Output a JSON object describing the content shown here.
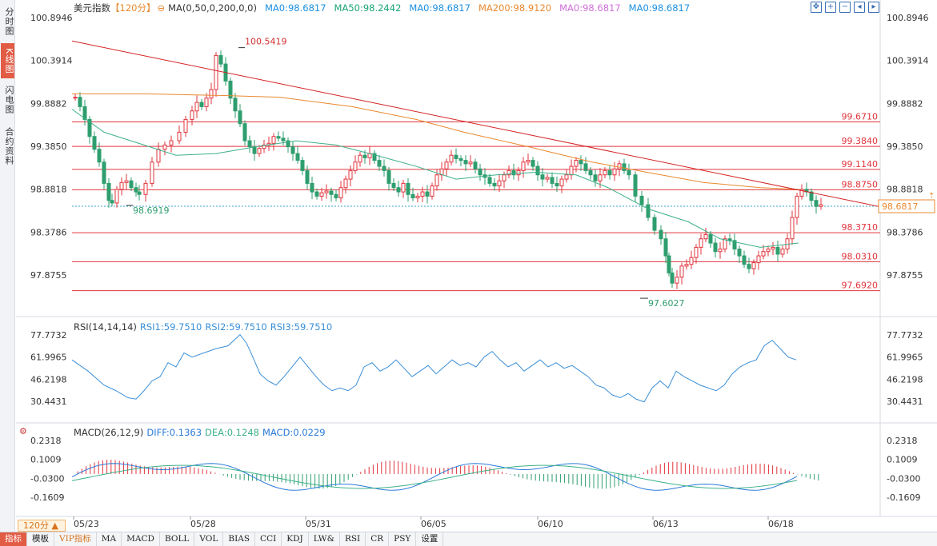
{
  "left_tabs": [
    {
      "label": "分时图",
      "active": false
    },
    {
      "label": "K线图",
      "active": true
    },
    {
      "label": "闪电图",
      "active": false
    },
    {
      "label": "合约资料",
      "active": false
    }
  ],
  "header": {
    "name": "美元指数",
    "period_tag": "【120分】",
    "ma_title": "MA(0,50,0,200,0,0)",
    "ma_values": [
      {
        "label": "MA0:98.6817",
        "color": "#1e90e0"
      },
      {
        "label": "MA50:98.2442",
        "color": "#1aa37a"
      },
      {
        "label": "MA0:98.6817",
        "color": "#1e90e0"
      },
      {
        "label": "MA200:98.9120",
        "color": "#e8892f"
      },
      {
        "label": "MA0:98.6817",
        "color": "#d070d8"
      },
      {
        "label": "MA0:98.6817",
        "color": "#1e90e0"
      }
    ]
  },
  "tool_icons": [
    "move-icon",
    "zoom-in-icon",
    "zoom-out-icon",
    "prev-icon",
    "next-icon"
  ],
  "price_axis": [
    "100.8946",
    "100.3914",
    "99.8882",
    "99.3850",
    "98.8818",
    "98.3786",
    "97.8755"
  ],
  "levels": [
    "99.6710",
    "99.3840",
    "99.1140",
    "98.8750",
    "98.3710",
    "98.0310",
    "97.6920"
  ],
  "current_price": "98.6817",
  "annotations": {
    "high": "100.5419",
    "low_left": "98.6919",
    "low": "97.6027"
  },
  "rsi": {
    "title": "RSI(14,14,14)",
    "values": [
      "RSI1:59.7510",
      "RSI2:59.7510",
      "RSI3:59.7510"
    ],
    "axis": [
      "77.7732",
      "61.9965",
      "46.2198",
      "30.4431"
    ]
  },
  "macd": {
    "title": "MACD(26,12,9)",
    "values": [
      "DIFF:0.1363",
      "DEA:0.1248",
      "MACD:0.0229"
    ],
    "axis": [
      "0.2318",
      "0.1009",
      "-0.0300",
      "-0.1609"
    ]
  },
  "dates": [
    "05/23",
    "05/28",
    "05/31",
    "06/05",
    "06/10",
    "06/13",
    "06/18"
  ],
  "period_selector": "120分 ▲",
  "bottom_tabs": [
    {
      "label": "指标",
      "active": true
    },
    {
      "label": "模板"
    },
    {
      "label": "VIP指标",
      "vip": true
    },
    {
      "label": "MA"
    },
    {
      "label": "MACD"
    },
    {
      "label": "BOLL"
    },
    {
      "label": "VOL"
    },
    {
      "label": "BIAS"
    },
    {
      "label": "CCI"
    },
    {
      "label": "KDJ"
    },
    {
      "label": "LW&"
    },
    {
      "label": "RSI"
    },
    {
      "label": "CR"
    },
    {
      "label": "PSY"
    },
    {
      "label": "设置"
    }
  ],
  "colors": {
    "up": "#e0343c",
    "down": "#2e9e6e",
    "level_line": "#e0343c",
    "trend_line": "#d42323",
    "ma50": "#3cb08a",
    "ma200": "#e8892f",
    "rsi": "#3a8fd8",
    "diff": "#2a7ad8",
    "dea": "#3cb08a"
  }
}
